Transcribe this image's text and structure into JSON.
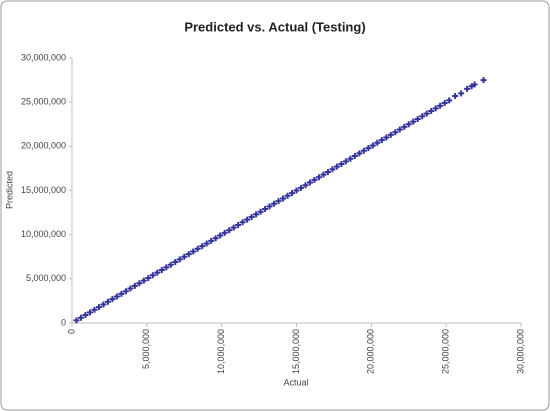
{
  "chart_data": {
    "type": "scatter",
    "title": "Predicted vs. Actual (Testing)",
    "x_label": "Actual",
    "y_label": "Predicted",
    "color": "#34349a",
    "grid": false,
    "xlim": [
      0,
      30000000
    ],
    "ylim": [
      0,
      30000000
    ],
    "xticks": [
      0,
      {
        "value": 5000000,
        "label": "5,000,000"
      },
      {
        "value": 10000000,
        "label": "10,000,000"
      },
      {
        "value": 15000000,
        "label": "15,000,000"
      },
      {
        "value": 20000000,
        "label": "20,000,000"
      },
      {
        "value": 25000000,
        "label": "25,000,000"
      },
      {
        "value": 30000000,
        "label": "30,000,000"
      }
    ],
    "yticks": [
      0,
      {
        "value": 5000000,
        "label": "5,000,000"
      },
      {
        "value": 10000000,
        "label": "10,000,000"
      },
      {
        "value": 15000000,
        "label": "15,000,000"
      },
      {
        "value": 20000000,
        "label": "20,000,000"
      },
      {
        "value": 25000000,
        "label": "25,000,000"
      },
      {
        "value": 30000000,
        "label": "30,000,000"
      }
    ],
    "x": [
      300000,
      600000,
      900000,
      1200000,
      1500000,
      1800000,
      2100000,
      2400000,
      2700000,
      3000000,
      3300000,
      3600000,
      3900000,
      4200000,
      4500000,
      4800000,
      5100000,
      5400000,
      5700000,
      6000000,
      6300000,
      6600000,
      6900000,
      7200000,
      7500000,
      7800000,
      8100000,
      8400000,
      8700000,
      9000000,
      9300000,
      9600000,
      9900000,
      10200000,
      10500000,
      10800000,
      11100000,
      11400000,
      11700000,
      12000000,
      12300000,
      12600000,
      12900000,
      13200000,
      13500000,
      13800000,
      14100000,
      14400000,
      14700000,
      15000000,
      15300000,
      15600000,
      15900000,
      16200000,
      16500000,
      16800000,
      17100000,
      17400000,
      17700000,
      18000000,
      18300000,
      18600000,
      18900000,
      19200000,
      19500000,
      19800000,
      20100000,
      20400000,
      20700000,
      21000000,
      21300000,
      21600000,
      21900000,
      22200000,
      22500000,
      22800000,
      23100000,
      23400000,
      23700000,
      24000000,
      24300000,
      24600000,
      24900000,
      25200000,
      25600000,
      26000000,
      26400000,
      26700000,
      26900000,
      27500000
    ],
    "values": [
      300000,
      600000,
      900000,
      1200000,
      1500000,
      1800000,
      2100000,
      2400000,
      2700000,
      3000000,
      3300000,
      3600000,
      3900000,
      4200000,
      4500000,
      4800000,
      5100000,
      5400000,
      5700000,
      6000000,
      6300000,
      6600000,
      6900000,
      7200000,
      7500000,
      7800000,
      8100000,
      8400000,
      8700000,
      9000000,
      9300000,
      9600000,
      9900000,
      10200000,
      10500000,
      10800000,
      11100000,
      11400000,
      11700000,
      12000000,
      12300000,
      12600000,
      12900000,
      13200000,
      13500000,
      13800000,
      14100000,
      14400000,
      14700000,
      15000000,
      15300000,
      15600000,
      15900000,
      16200000,
      16500000,
      16800000,
      17100000,
      17400000,
      17700000,
      18000000,
      18300000,
      18600000,
      18900000,
      19200000,
      19500000,
      19800000,
      20100000,
      20400000,
      20700000,
      21000000,
      21300000,
      21600000,
      21900000,
      22200000,
      22500000,
      22800000,
      23100000,
      23400000,
      23700000,
      24000000,
      24300000,
      24600000,
      24900000,
      25200000,
      25700000,
      26000000,
      26500000,
      26800000,
      27000000,
      27500000
    ]
  }
}
